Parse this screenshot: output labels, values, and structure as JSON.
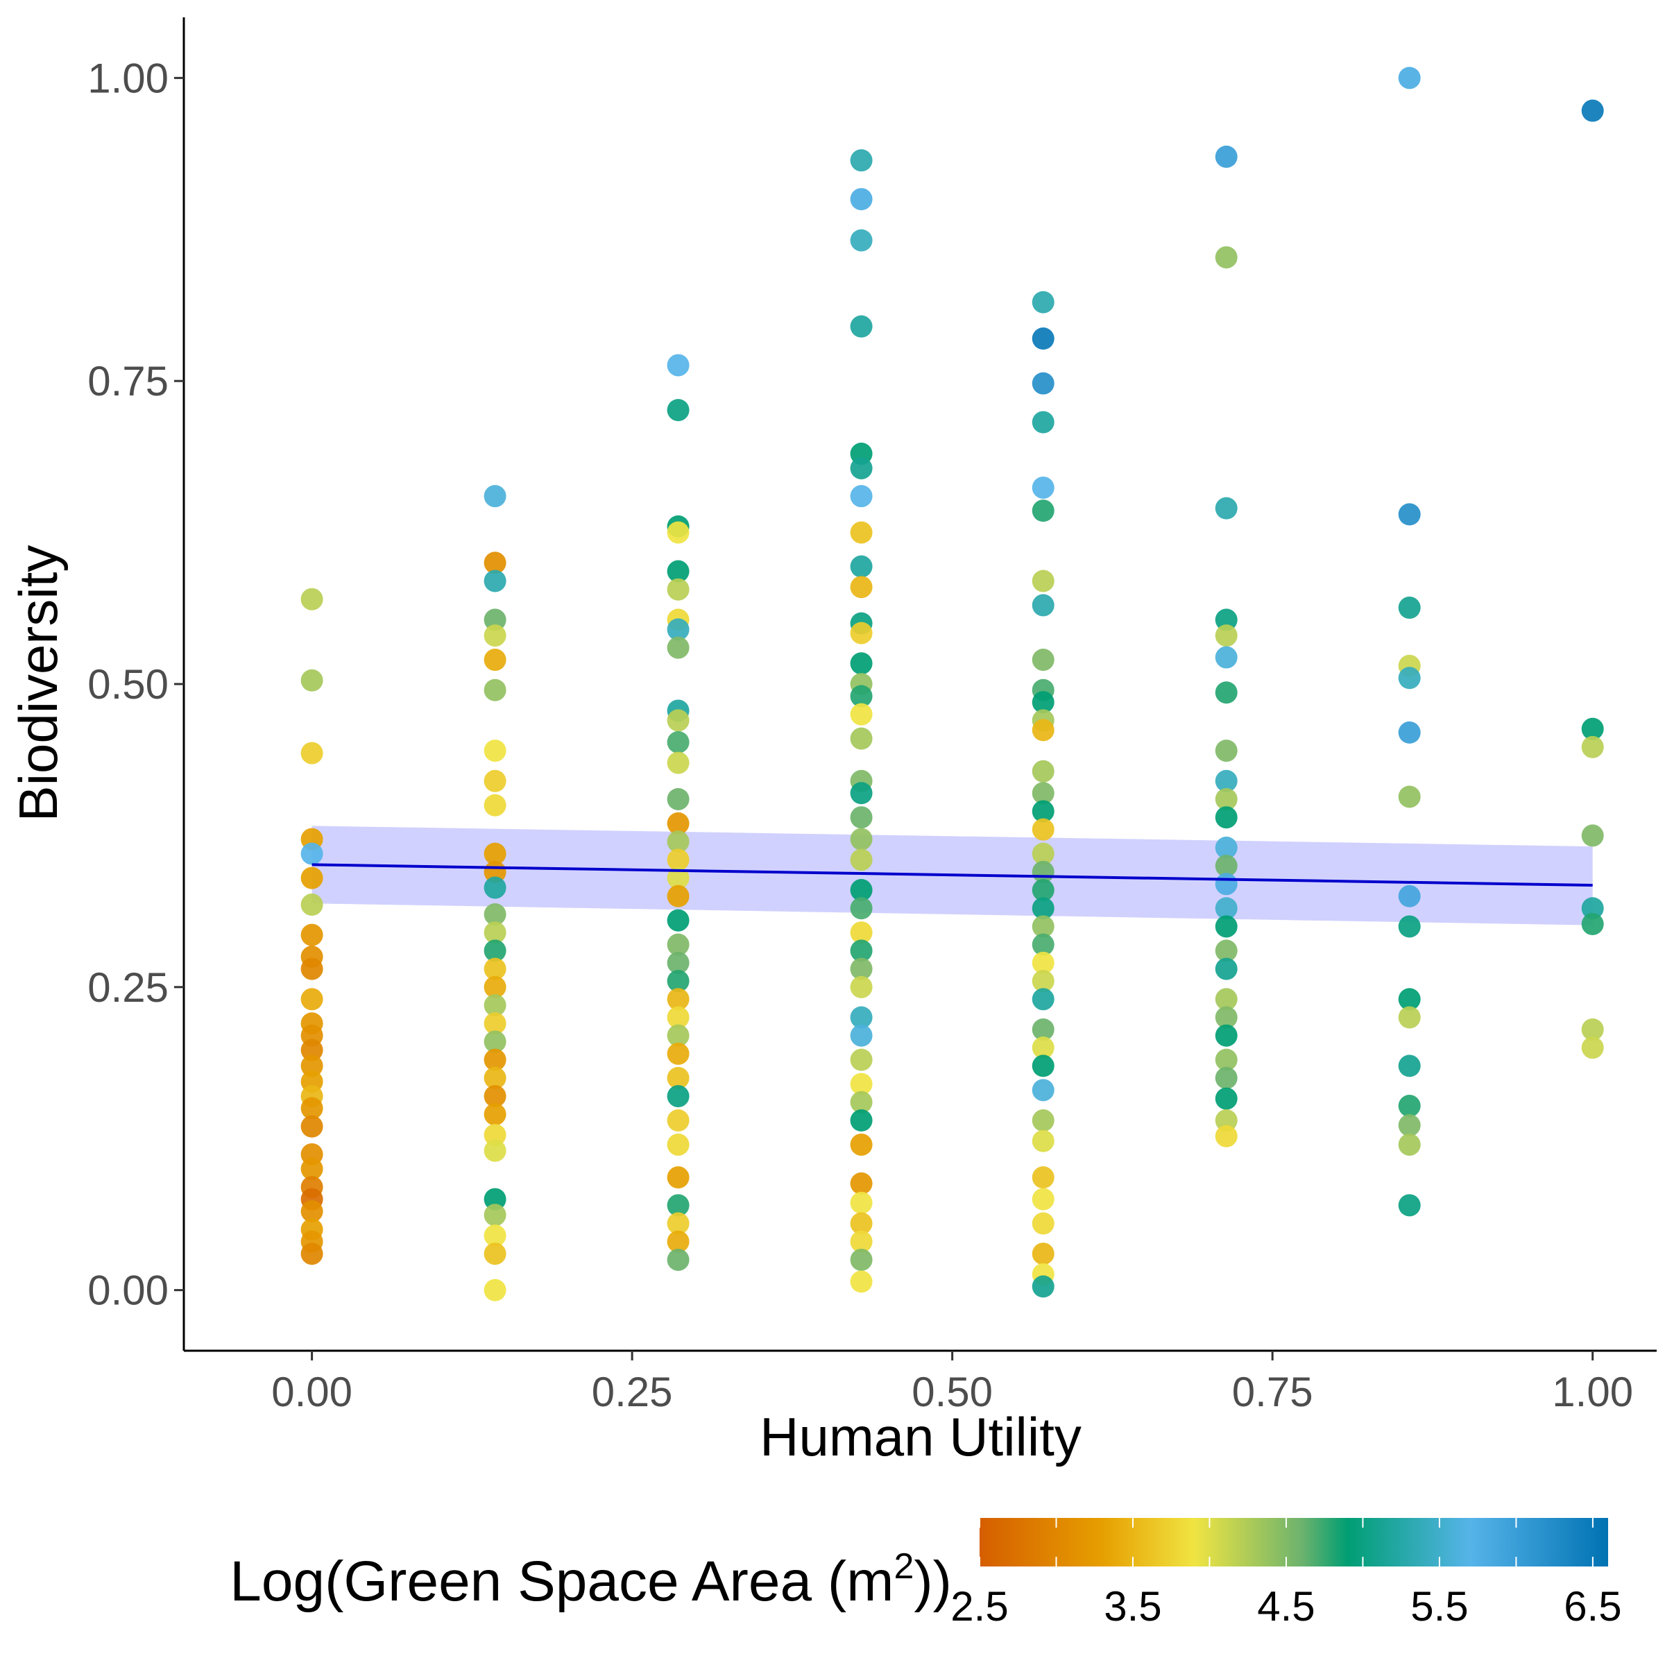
{
  "chart_data": {
    "type": "scatter",
    "title": "",
    "xlabel": "Human Utility",
    "ylabel": "Biodiversity",
    "xlim": [
      -0.1,
      1.05
    ],
    "ylim": [
      -0.05,
      1.05
    ],
    "x_ticks": [
      "0.00",
      "0.25",
      "0.50",
      "0.75",
      "1.00"
    ],
    "y_ticks": [
      "0.00",
      "0.25",
      "0.50",
      "0.75",
      "1.00"
    ],
    "grid": false,
    "legend": {
      "title_main": "Log(Green Space Area (m",
      "title_sup": "2",
      "title_end": "))",
      "placement": "bottom",
      "range": [
        2.5,
        6.6
      ],
      "ticks": [
        "2.5",
        "3.5",
        "4.5",
        "5.5",
        "6.5"
      ],
      "stops": [
        {
          "value": 2.5,
          "color": "#d55e00"
        },
        {
          "value": 3.3,
          "color": "#e69f00"
        },
        {
          "value": 3.9,
          "color": "#f0e442"
        },
        {
          "value": 4.6,
          "color": "#6db36d"
        },
        {
          "value": 4.9,
          "color": "#009e73"
        },
        {
          "value": 5.7,
          "color": "#56b4e9"
        },
        {
          "value": 6.6,
          "color": "#0072b2"
        }
      ]
    },
    "trend": {
      "x": [
        0,
        1
      ],
      "y": [
        0.351,
        0.334
      ],
      "ci_lower": [
        0.319,
        0.301
      ],
      "ci_upper": [
        0.383,
        0.366
      ],
      "line_color": "#0000cc",
      "band_color": "#ccccff"
    },
    "points": [
      {
        "x": 0,
        "y": 0.57,
        "c": 4.2
      },
      {
        "x": 0,
        "y": 0.503,
        "c": 4.3
      },
      {
        "x": 0,
        "y": 0.443,
        "c": 3.7
      },
      {
        "x": 0,
        "y": 0.372,
        "c": 3.3
      },
      {
        "x": 0,
        "y": 0.36,
        "c": 5.7
      },
      {
        "x": 0,
        "y": 0.34,
        "c": 3.3
      },
      {
        "x": 0,
        "y": 0.318,
        "c": 4.2
      },
      {
        "x": 0,
        "y": 0.293,
        "c": 3.2
      },
      {
        "x": 0,
        "y": 0.275,
        "c": 3.1
      },
      {
        "x": 0,
        "y": 0.265,
        "c": 3.0
      },
      {
        "x": 0,
        "y": 0.24,
        "c": 3.4
      },
      {
        "x": 0,
        "y": 0.22,
        "c": 3.2
      },
      {
        "x": 0,
        "y": 0.21,
        "c": 3.1
      },
      {
        "x": 0,
        "y": 0.198,
        "c": 3.0
      },
      {
        "x": 0,
        "y": 0.185,
        "c": 3.2
      },
      {
        "x": 0,
        "y": 0.172,
        "c": 3.3
      },
      {
        "x": 0,
        "y": 0.16,
        "c": 3.5
      },
      {
        "x": 0,
        "y": 0.15,
        "c": 3.2
      },
      {
        "x": 0,
        "y": 0.135,
        "c": 3.0
      },
      {
        "x": 0,
        "y": 0.112,
        "c": 3.1
      },
      {
        "x": 0,
        "y": 0.1,
        "c": 3.2
      },
      {
        "x": 0,
        "y": 0.085,
        "c": 2.9
      },
      {
        "x": 0,
        "y": 0.075,
        "c": 2.7
      },
      {
        "x": 0,
        "y": 0.065,
        "c": 3.1
      },
      {
        "x": 0,
        "y": 0.05,
        "c": 3.3
      },
      {
        "x": 0,
        "y": 0.04,
        "c": 3.2
      },
      {
        "x": 0,
        "y": 0.03,
        "c": 3.0
      },
      {
        "x": 0.143,
        "y": 0.655,
        "c": 5.6
      },
      {
        "x": 0.143,
        "y": 0.6,
        "c": 3.1
      },
      {
        "x": 0.143,
        "y": 0.585,
        "c": 5.3
      },
      {
        "x": 0.143,
        "y": 0.553,
        "c": 4.6
      },
      {
        "x": 0.143,
        "y": 0.54,
        "c": 4.1
      },
      {
        "x": 0.143,
        "y": 0.52,
        "c": 3.4
      },
      {
        "x": 0.143,
        "y": 0.495,
        "c": 4.4
      },
      {
        "x": 0.143,
        "y": 0.445,
        "c": 3.9
      },
      {
        "x": 0.143,
        "y": 0.42,
        "c": 3.7
      },
      {
        "x": 0.143,
        "y": 0.4,
        "c": 3.8
      },
      {
        "x": 0.143,
        "y": 0.36,
        "c": 3.3
      },
      {
        "x": 0.143,
        "y": 0.345,
        "c": 3.2
      },
      {
        "x": 0.143,
        "y": 0.332,
        "c": 5.2
      },
      {
        "x": 0.143,
        "y": 0.31,
        "c": 4.5
      },
      {
        "x": 0.143,
        "y": 0.295,
        "c": 4.2
      },
      {
        "x": 0.143,
        "y": 0.28,
        "c": 4.8
      },
      {
        "x": 0.143,
        "y": 0.265,
        "c": 3.6
      },
      {
        "x": 0.143,
        "y": 0.25,
        "c": 3.4
      },
      {
        "x": 0.143,
        "y": 0.235,
        "c": 4.3
      },
      {
        "x": 0.143,
        "y": 0.22,
        "c": 3.7
      },
      {
        "x": 0.143,
        "y": 0.205,
        "c": 4.4
      },
      {
        "x": 0.143,
        "y": 0.19,
        "c": 3.2
      },
      {
        "x": 0.143,
        "y": 0.175,
        "c": 3.5
      },
      {
        "x": 0.143,
        "y": 0.16,
        "c": 3.1
      },
      {
        "x": 0.143,
        "y": 0.145,
        "c": 3.3
      },
      {
        "x": 0.143,
        "y": 0.128,
        "c": 3.8
      },
      {
        "x": 0.143,
        "y": 0.115,
        "c": 4.0
      },
      {
        "x": 0.143,
        "y": 0.075,
        "c": 4.9
      },
      {
        "x": 0.143,
        "y": 0.062,
        "c": 4.3
      },
      {
        "x": 0.143,
        "y": 0.045,
        "c": 3.9
      },
      {
        "x": 0.143,
        "y": 0.03,
        "c": 3.6
      },
      {
        "x": 0.143,
        "y": 0,
        "c": 3.9
      },
      {
        "x": 0.286,
        "y": 0.763,
        "c": 5.7
      },
      {
        "x": 0.286,
        "y": 0.726,
        "c": 5.0
      },
      {
        "x": 0.286,
        "y": 0.63,
        "c": 4.9
      },
      {
        "x": 0.286,
        "y": 0.625,
        "c": 3.9
      },
      {
        "x": 0.286,
        "y": 0.593,
        "c": 4.9
      },
      {
        "x": 0.286,
        "y": 0.578,
        "c": 4.2
      },
      {
        "x": 0.286,
        "y": 0.553,
        "c": 3.8
      },
      {
        "x": 0.286,
        "y": 0.545,
        "c": 5.4
      },
      {
        "x": 0.286,
        "y": 0.53,
        "c": 4.5
      },
      {
        "x": 0.286,
        "y": 0.478,
        "c": 5.2
      },
      {
        "x": 0.286,
        "y": 0.47,
        "c": 4.2
      },
      {
        "x": 0.286,
        "y": 0.452,
        "c": 4.7
      },
      {
        "x": 0.286,
        "y": 0.435,
        "c": 4.1
      },
      {
        "x": 0.286,
        "y": 0.405,
        "c": 4.6
      },
      {
        "x": 0.286,
        "y": 0.385,
        "c": 3.2
      },
      {
        "x": 0.286,
        "y": 0.37,
        "c": 4.3
      },
      {
        "x": 0.286,
        "y": 0.355,
        "c": 3.7
      },
      {
        "x": 0.286,
        "y": 0.34,
        "c": 4.0
      },
      {
        "x": 0.286,
        "y": 0.325,
        "c": 3.3
      },
      {
        "x": 0.286,
        "y": 0.305,
        "c": 4.9
      },
      {
        "x": 0.286,
        "y": 0.285,
        "c": 4.5
      },
      {
        "x": 0.286,
        "y": 0.27,
        "c": 4.6
      },
      {
        "x": 0.286,
        "y": 0.255,
        "c": 4.8
      },
      {
        "x": 0.286,
        "y": 0.24,
        "c": 3.5
      },
      {
        "x": 0.286,
        "y": 0.225,
        "c": 3.8
      },
      {
        "x": 0.286,
        "y": 0.21,
        "c": 4.3
      },
      {
        "x": 0.286,
        "y": 0.195,
        "c": 3.4
      },
      {
        "x": 0.286,
        "y": 0.175,
        "c": 3.6
      },
      {
        "x": 0.286,
        "y": 0.16,
        "c": 5.0
      },
      {
        "x": 0.286,
        "y": 0.14,
        "c": 3.7
      },
      {
        "x": 0.286,
        "y": 0.12,
        "c": 3.8
      },
      {
        "x": 0.286,
        "y": 0.093,
        "c": 3.3
      },
      {
        "x": 0.286,
        "y": 0.07,
        "c": 4.8
      },
      {
        "x": 0.286,
        "y": 0.055,
        "c": 3.7
      },
      {
        "x": 0.286,
        "y": 0.04,
        "c": 3.4
      },
      {
        "x": 0.286,
        "y": 0.025,
        "c": 4.6
      },
      {
        "x": 0.429,
        "y": 0.932,
        "c": 5.3
      },
      {
        "x": 0.429,
        "y": 0.9,
        "c": 5.8
      },
      {
        "x": 0.429,
        "y": 0.866,
        "c": 5.4
      },
      {
        "x": 0.429,
        "y": 0.795,
        "c": 5.2
      },
      {
        "x": 0.429,
        "y": 0.69,
        "c": 4.9
      },
      {
        "x": 0.429,
        "y": 0.678,
        "c": 5.1
      },
      {
        "x": 0.429,
        "y": 0.655,
        "c": 5.7
      },
      {
        "x": 0.429,
        "y": 0.625,
        "c": 3.6
      },
      {
        "x": 0.429,
        "y": 0.597,
        "c": 5.2
      },
      {
        "x": 0.429,
        "y": 0.58,
        "c": 3.5
      },
      {
        "x": 0.429,
        "y": 0.55,
        "c": 5.0
      },
      {
        "x": 0.429,
        "y": 0.542,
        "c": 3.7
      },
      {
        "x": 0.429,
        "y": 0.517,
        "c": 4.9
      },
      {
        "x": 0.429,
        "y": 0.5,
        "c": 4.4
      },
      {
        "x": 0.429,
        "y": 0.49,
        "c": 4.8
      },
      {
        "x": 0.429,
        "y": 0.475,
        "c": 3.9
      },
      {
        "x": 0.429,
        "y": 0.455,
        "c": 4.3
      },
      {
        "x": 0.429,
        "y": 0.42,
        "c": 4.5
      },
      {
        "x": 0.429,
        "y": 0.41,
        "c": 5.0
      },
      {
        "x": 0.429,
        "y": 0.39,
        "c": 4.6
      },
      {
        "x": 0.429,
        "y": 0.372,
        "c": 4.4
      },
      {
        "x": 0.429,
        "y": 0.355,
        "c": 4.2
      },
      {
        "x": 0.429,
        "y": 0.33,
        "c": 4.9
      },
      {
        "x": 0.429,
        "y": 0.315,
        "c": 4.7
      },
      {
        "x": 0.429,
        "y": 0.295,
        "c": 3.8
      },
      {
        "x": 0.429,
        "y": 0.28,
        "c": 4.8
      },
      {
        "x": 0.429,
        "y": 0.265,
        "c": 4.5
      },
      {
        "x": 0.429,
        "y": 0.25,
        "c": 4.1
      },
      {
        "x": 0.429,
        "y": 0.225,
        "c": 5.4
      },
      {
        "x": 0.429,
        "y": 0.21,
        "c": 5.6
      },
      {
        "x": 0.429,
        "y": 0.19,
        "c": 4.2
      },
      {
        "x": 0.429,
        "y": 0.17,
        "c": 3.9
      },
      {
        "x": 0.429,
        "y": 0.155,
        "c": 4.3
      },
      {
        "x": 0.429,
        "y": 0.14,
        "c": 4.9
      },
      {
        "x": 0.429,
        "y": 0.12,
        "c": 3.3
      },
      {
        "x": 0.429,
        "y": 0.088,
        "c": 3.2
      },
      {
        "x": 0.429,
        "y": 0.072,
        "c": 3.9
      },
      {
        "x": 0.429,
        "y": 0.055,
        "c": 3.6
      },
      {
        "x": 0.429,
        "y": 0.04,
        "c": 3.8
      },
      {
        "x": 0.429,
        "y": 0.025,
        "c": 4.5
      },
      {
        "x": 0.429,
        "y": 0.007,
        "c": 3.9
      },
      {
        "x": 0.571,
        "y": 0.815,
        "c": 5.3
      },
      {
        "x": 0.571,
        "y": 0.785,
        "c": 6.5
      },
      {
        "x": 0.571,
        "y": 0.748,
        "c": 6.2
      },
      {
        "x": 0.571,
        "y": 0.716,
        "c": 5.2
      },
      {
        "x": 0.571,
        "y": 0.662,
        "c": 5.7
      },
      {
        "x": 0.571,
        "y": 0.643,
        "c": 4.8
      },
      {
        "x": 0.571,
        "y": 0.585,
        "c": 4.2
      },
      {
        "x": 0.571,
        "y": 0.565,
        "c": 5.3
      },
      {
        "x": 0.571,
        "y": 0.52,
        "c": 4.5
      },
      {
        "x": 0.571,
        "y": 0.495,
        "c": 4.7
      },
      {
        "x": 0.571,
        "y": 0.485,
        "c": 4.9
      },
      {
        "x": 0.571,
        "y": 0.47,
        "c": 4.3
      },
      {
        "x": 0.571,
        "y": 0.462,
        "c": 3.5
      },
      {
        "x": 0.571,
        "y": 0.428,
        "c": 4.3
      },
      {
        "x": 0.571,
        "y": 0.41,
        "c": 4.5
      },
      {
        "x": 0.571,
        "y": 0.395,
        "c": 4.9
      },
      {
        "x": 0.571,
        "y": 0.38,
        "c": 3.6
      },
      {
        "x": 0.571,
        "y": 0.36,
        "c": 4.2
      },
      {
        "x": 0.571,
        "y": 0.345,
        "c": 4.6
      },
      {
        "x": 0.571,
        "y": 0.33,
        "c": 4.8
      },
      {
        "x": 0.571,
        "y": 0.315,
        "c": 5.0
      },
      {
        "x": 0.571,
        "y": 0.3,
        "c": 4.4
      },
      {
        "x": 0.571,
        "y": 0.285,
        "c": 4.7
      },
      {
        "x": 0.571,
        "y": 0.27,
        "c": 3.9
      },
      {
        "x": 0.571,
        "y": 0.255,
        "c": 4.1
      },
      {
        "x": 0.571,
        "y": 0.24,
        "c": 5.2
      },
      {
        "x": 0.571,
        "y": 0.215,
        "c": 4.6
      },
      {
        "x": 0.571,
        "y": 0.2,
        "c": 4.0
      },
      {
        "x": 0.571,
        "y": 0.185,
        "c": 4.9
      },
      {
        "x": 0.571,
        "y": 0.165,
        "c": 5.6
      },
      {
        "x": 0.571,
        "y": 0.14,
        "c": 4.3
      },
      {
        "x": 0.571,
        "y": 0.123,
        "c": 4.0
      },
      {
        "x": 0.571,
        "y": 0.093,
        "c": 3.6
      },
      {
        "x": 0.571,
        "y": 0.075,
        "c": 3.9
      },
      {
        "x": 0.571,
        "y": 0.055,
        "c": 3.8
      },
      {
        "x": 0.571,
        "y": 0.03,
        "c": 3.5
      },
      {
        "x": 0.571,
        "y": 0.013,
        "c": 3.9
      },
      {
        "x": 0.571,
        "y": 0.003,
        "c": 5.1
      },
      {
        "x": 0.714,
        "y": 0.935,
        "c": 6.0
      },
      {
        "x": 0.714,
        "y": 0.852,
        "c": 4.4
      },
      {
        "x": 0.714,
        "y": 0.645,
        "c": 5.3
      },
      {
        "x": 0.714,
        "y": 0.553,
        "c": 5.0
      },
      {
        "x": 0.714,
        "y": 0.54,
        "c": 4.2
      },
      {
        "x": 0.714,
        "y": 0.522,
        "c": 5.6
      },
      {
        "x": 0.714,
        "y": 0.493,
        "c": 4.8
      },
      {
        "x": 0.714,
        "y": 0.445,
        "c": 4.5
      },
      {
        "x": 0.714,
        "y": 0.42,
        "c": 5.4
      },
      {
        "x": 0.714,
        "y": 0.405,
        "c": 4.3
      },
      {
        "x": 0.714,
        "y": 0.39,
        "c": 4.9
      },
      {
        "x": 0.714,
        "y": 0.365,
        "c": 5.6
      },
      {
        "x": 0.714,
        "y": 0.35,
        "c": 4.6
      },
      {
        "x": 0.714,
        "y": 0.335,
        "c": 5.8
      },
      {
        "x": 0.714,
        "y": 0.315,
        "c": 5.5
      },
      {
        "x": 0.714,
        "y": 0.3,
        "c": 4.9
      },
      {
        "x": 0.714,
        "y": 0.28,
        "c": 4.5
      },
      {
        "x": 0.714,
        "y": 0.265,
        "c": 5.1
      },
      {
        "x": 0.714,
        "y": 0.24,
        "c": 4.3
      },
      {
        "x": 0.714,
        "y": 0.225,
        "c": 4.5
      },
      {
        "x": 0.714,
        "y": 0.21,
        "c": 4.9
      },
      {
        "x": 0.714,
        "y": 0.19,
        "c": 4.4
      },
      {
        "x": 0.714,
        "y": 0.175,
        "c": 4.6
      },
      {
        "x": 0.714,
        "y": 0.158,
        "c": 4.9
      },
      {
        "x": 0.714,
        "y": 0.14,
        "c": 4.2
      },
      {
        "x": 0.714,
        "y": 0.127,
        "c": 3.8
      },
      {
        "x": 0.857,
        "y": 1.0,
        "c": 5.8
      },
      {
        "x": 0.857,
        "y": 0.64,
        "c": 6.2
      },
      {
        "x": 0.857,
        "y": 0.563,
        "c": 5.1
      },
      {
        "x": 0.857,
        "y": 0.515,
        "c": 4.1
      },
      {
        "x": 0.857,
        "y": 0.505,
        "c": 5.4
      },
      {
        "x": 0.857,
        "y": 0.46,
        "c": 6.0
      },
      {
        "x": 0.857,
        "y": 0.407,
        "c": 4.4
      },
      {
        "x": 0.857,
        "y": 0.325,
        "c": 5.9
      },
      {
        "x": 0.857,
        "y": 0.3,
        "c": 5.0
      },
      {
        "x": 0.857,
        "y": 0.24,
        "c": 4.9
      },
      {
        "x": 0.857,
        "y": 0.225,
        "c": 4.2
      },
      {
        "x": 0.857,
        "y": 0.185,
        "c": 5.1
      },
      {
        "x": 0.857,
        "y": 0.152,
        "c": 4.8
      },
      {
        "x": 0.857,
        "y": 0.136,
        "c": 4.5
      },
      {
        "x": 0.857,
        "y": 0.12,
        "c": 4.3
      },
      {
        "x": 0.857,
        "y": 0.07,
        "c": 5.0
      },
      {
        "x": 1.0,
        "y": 0.973,
        "c": 6.5
      },
      {
        "x": 1.0,
        "y": 0.463,
        "c": 4.9
      },
      {
        "x": 1.0,
        "y": 0.448,
        "c": 4.2
      },
      {
        "x": 1.0,
        "y": 0.375,
        "c": 4.5
      },
      {
        "x": 1.0,
        "y": 0.315,
        "c": 5.2
      },
      {
        "x": 1.0,
        "y": 0.302,
        "c": 4.8
      },
      {
        "x": 1.0,
        "y": 0.215,
        "c": 4.2
      },
      {
        "x": 1.0,
        "y": 0.2,
        "c": 4.1
      }
    ]
  }
}
